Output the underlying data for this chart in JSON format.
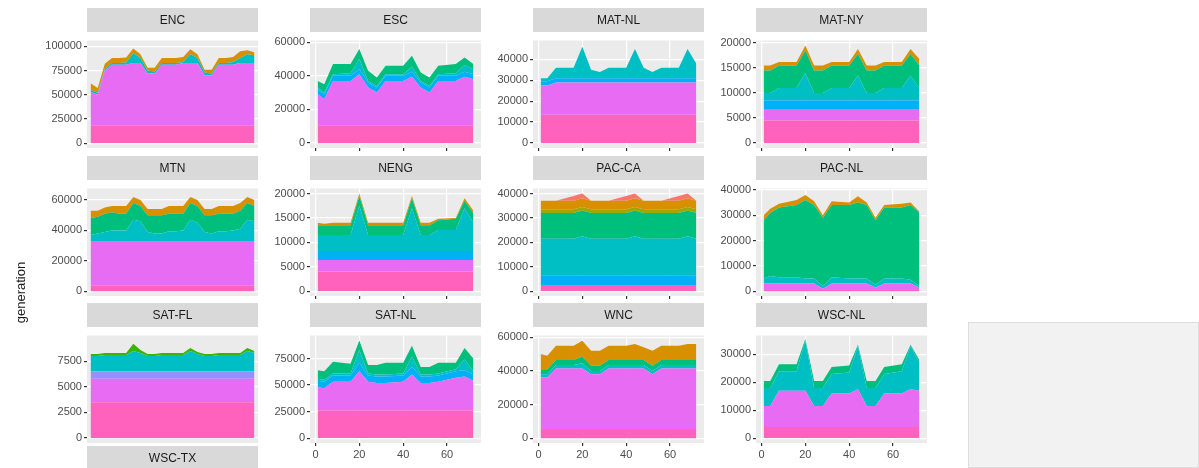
{
  "chart_data": [
    {
      "type": "area",
      "title": "ENC",
      "stacked": true,
      "grid": "y",
      "tick_labels": "y",
      "categories": [
        null,
        null,
        null,
        null,
        null,
        null,
        null,
        null,
        null,
        null,
        null,
        null,
        null,
        null,
        null,
        null,
        null,
        null,
        null,
        null,
        null,
        null,
        null,
        null
      ],
      "ylim": [
        -5050,
        106050
      ],
      "yticks": [
        0,
        25000,
        50000,
        75000,
        100000
      ],
      "series": [
        {
          "color": "#ff62bc",
          "values": [
            18000,
            18000,
            18000,
            18000,
            18000,
            18000,
            18000,
            18000,
            18000,
            18000,
            18000,
            18000,
            18000,
            18000,
            18000,
            18000,
            18000,
            18000,
            18000,
            18000,
            18000,
            18000,
            18000,
            18000
          ]
        },
        {
          "color": "#e76bf3",
          "values": [
            35000,
            32000,
            57000,
            63000,
            63000,
            63000,
            65000,
            65000,
            54000,
            54000,
            63000,
            63000,
            63000,
            65000,
            65000,
            65000,
            52000,
            52000,
            63000,
            63000,
            63000,
            65000,
            65000,
            65000
          ]
        },
        {
          "color": "#00bfc4",
          "values": [
            2000,
            2000,
            2000,
            2000,
            2000,
            2500,
            10000,
            5000,
            3000,
            2000,
            2000,
            2000,
            2000,
            1000,
            9000,
            5000,
            3000,
            2000,
            2000,
            2000,
            3000,
            5000,
            9000,
            8000
          ]
        },
        {
          "color": "#d89000",
          "values": [
            7000,
            5000,
            5000,
            5000,
            5000,
            5000,
            5000,
            4000,
            3000,
            4000,
            5000,
            5000,
            5000,
            5000,
            5000,
            4000,
            3000,
            4000,
            5000,
            5000,
            5000,
            7000,
            4000,
            3000
          ]
        }
      ]
    },
    {
      "type": "area",
      "title": "ESC",
      "stacked": true,
      "grid": true,
      "tick_labels": "y",
      "x": [
        1,
        4,
        8,
        16,
        20,
        24,
        28,
        32,
        40,
        44,
        48,
        52,
        56,
        64,
        68,
        72
      ],
      "xlim": [
        -2.5,
        75.5
      ],
      "xticks": [
        0,
        20,
        40,
        60
      ],
      "ylim": [
        -3000,
        61000
      ],
      "yticks": [
        0,
        20000,
        40000,
        60000
      ],
      "series": [
        {
          "color": "#ff62bc",
          "values": [
            10500,
            10500,
            10500,
            10500,
            10500,
            10500,
            10500,
            10500,
            10500,
            10500,
            10500,
            10500,
            10500,
            10500,
            10500,
            10500
          ]
        },
        {
          "color": "#e76bf3",
          "values": [
            18500,
            15500,
            26500,
            26500,
            30500,
            22500,
            19500,
            26500,
            26500,
            29000,
            22500,
            19500,
            26500,
            26500,
            29000,
            27500
          ]
        },
        {
          "color": "#00b0f6",
          "values": [
            3000,
            3000,
            3000,
            3000,
            3000,
            3000,
            3000,
            3000,
            3000,
            3000,
            3000,
            3000,
            3000,
            3000,
            3000,
            3000
          ]
        },
        {
          "color": "#00bfc4",
          "values": [
            1000,
            1000,
            1000,
            1500,
            6000,
            1000,
            1000,
            1000,
            1000,
            3000,
            1000,
            1000,
            1000,
            1500,
            4000,
            3000
          ]
        },
        {
          "color": "#00bf7d",
          "values": [
            4000,
            5000,
            6000,
            5500,
            6000,
            6000,
            5000,
            5000,
            5000,
            6500,
            5000,
            5000,
            5000,
            5500,
            4500,
            3000
          ]
        }
      ]
    },
    {
      "type": "area",
      "title": "MAT-NL",
      "stacked": true,
      "grid": true,
      "tick_labels": "y",
      "x": [
        1,
        4,
        8,
        16,
        20,
        24,
        28,
        32,
        40,
        44,
        48,
        52,
        56,
        64,
        68,
        72
      ],
      "xlim": [
        -2.5,
        75.5
      ],
      "xticks": [
        0,
        20,
        40,
        60
      ],
      "ylim": [
        -2400,
        49000
      ],
      "yticks": [
        0,
        10000,
        20000,
        30000,
        40000
      ],
      "series": [
        {
          "color": "#ff62bc",
          "values": [
            13500,
            13500,
            13500,
            13500,
            13500,
            13500,
            13500,
            13500,
            13500,
            13500,
            13500,
            13500,
            13500,
            13500,
            13500,
            13500
          ]
        },
        {
          "color": "#e76bf3",
          "values": [
            14000,
            14000,
            15500,
            15500,
            15500,
            15500,
            15500,
            15500,
            15500,
            15500,
            15500,
            15500,
            15500,
            15500,
            15500,
            15500
          ]
        },
        {
          "color": "#00b0f6",
          "values": [
            2000,
            2000,
            2000,
            2000,
            2000,
            2000,
            2000,
            2000,
            2000,
            2000,
            2000,
            2000,
            2000,
            2000,
            2000,
            2000
          ]
        },
        {
          "color": "#00bfc4",
          "values": [
            1500,
            1500,
            5000,
            5000,
            15000,
            4000,
            3000,
            5000,
            5000,
            14000,
            5000,
            3000,
            5000,
            5000,
            14000,
            7000
          ]
        }
      ]
    },
    {
      "type": "area",
      "title": "MAT-NY",
      "stacked": true,
      "grid": true,
      "tick_labels": "y",
      "x": [
        1,
        4,
        8,
        16,
        20,
        24,
        28,
        32,
        40,
        44,
        48,
        52,
        56,
        64,
        68,
        72
      ],
      "xlim": [
        -2.5,
        75.5
      ],
      "xticks": [
        0,
        20,
        40,
        60
      ],
      "ylim": [
        -1000,
        20500
      ],
      "yticks": [
        0,
        5000,
        10000,
        15000,
        20000
      ],
      "series": [
        {
          "color": "#ff62bc",
          "values": [
            4500,
            4500,
            4500,
            4500,
            4500,
            4500,
            4500,
            4500,
            4500,
            4500,
            4500,
            4500,
            4500,
            4500,
            4500,
            4500
          ]
        },
        {
          "color": "#e76bf3",
          "values": [
            2300,
            2300,
            2300,
            2300,
            2300,
            2300,
            2300,
            2300,
            2300,
            2300,
            2300,
            2300,
            2300,
            2300,
            2300,
            2300
          ]
        },
        {
          "color": "#00b0f6",
          "values": [
            1700,
            1700,
            1700,
            1700,
            1700,
            1700,
            1700,
            1700,
            1700,
            1700,
            1700,
            1700,
            1700,
            1700,
            1700,
            1700
          ]
        },
        {
          "color": "#00bfc4",
          "values": [
            1500,
            1500,
            2500,
            2500,
            5500,
            1500,
            1500,
            2500,
            2500,
            5000,
            1500,
            1500,
            2500,
            2500,
            5000,
            2500
          ]
        },
        {
          "color": "#00bf7d",
          "values": [
            4500,
            4500,
            4500,
            4500,
            4500,
            4500,
            4500,
            4500,
            4500,
            4300,
            4500,
            4500,
            4500,
            4500,
            4300,
            4500
          ]
        },
        {
          "color": "#d89000",
          "values": [
            1000,
            1000,
            700,
            700,
            1000,
            1000,
            1000,
            700,
            700,
            1000,
            1000,
            1000,
            700,
            700,
            1000,
            1300
          ]
        }
      ]
    },
    {
      "type": "area",
      "title": "MTN",
      "ylabel": "generation",
      "stacked": true,
      "grid": "y",
      "tick_labels": "y",
      "categories": [
        null,
        null,
        null,
        null,
        null,
        null,
        null,
        null,
        null,
        null,
        null,
        null,
        null,
        null,
        null,
        null,
        null,
        null,
        null,
        null,
        null,
        null,
        null,
        null
      ],
      "ylim": [
        -3200,
        67500
      ],
      "yticks": [
        0,
        20000,
        40000,
        60000
      ],
      "series": [
        {
          "color": "#ff62bc",
          "values": [
            3500,
            3500,
            3500,
            3500,
            3500,
            3500,
            3500,
            3500,
            3500,
            3500,
            3500,
            3500,
            3500,
            3500,
            3500,
            3500,
            3500,
            3500,
            3500,
            3500,
            3500,
            3500,
            3500,
            3500
          ]
        },
        {
          "color": "#e76bf3",
          "values": [
            29500,
            29500,
            29500,
            29500,
            29500,
            29500,
            29500,
            29500,
            29500,
            29500,
            29500,
            29500,
            29500,
            29500,
            29500,
            29500,
            29500,
            29500,
            29500,
            29500,
            29500,
            29500,
            29500,
            29500
          ]
        },
        {
          "color": "#00bfc4",
          "values": [
            4000,
            5000,
            6000,
            7000,
            7000,
            7000,
            14000,
            13000,
            6000,
            5000,
            5000,
            6500,
            6500,
            7000,
            14000,
            12000,
            6000,
            5000,
            6500,
            6500,
            7000,
            8000,
            14000,
            13000
          ]
        },
        {
          "color": "#00bf7d",
          "values": [
            11000,
            11000,
            12000,
            12000,
            11000,
            11000,
            11000,
            10000,
            11000,
            12000,
            12000,
            11500,
            11500,
            11000,
            11000,
            11000,
            11000,
            12000,
            11500,
            11500,
            11000,
            12000,
            11000,
            10000
          ]
        },
        {
          "color": "#d89000",
          "values": [
            5000,
            4000,
            4000,
            4000,
            5000,
            5000,
            4000,
            4000,
            4000,
            4000,
            4000,
            5000,
            5000,
            5000,
            4000,
            4000,
            4000,
            4000,
            5000,
            5000,
            5000,
            5000,
            4000,
            4000
          ]
        }
      ]
    },
    {
      "type": "area",
      "title": "NENG",
      "stacked": true,
      "grid": true,
      "tick_labels": "y",
      "x": [
        1,
        4,
        8,
        16,
        20,
        24,
        28,
        32,
        40,
        44,
        48,
        52,
        56,
        64,
        68,
        72
      ],
      "xlim": [
        -2.5,
        75.5
      ],
      "xticks": [
        0,
        20,
        40,
        60
      ],
      "ylim": [
        -1000,
        21000
      ],
      "yticks": [
        0,
        5000,
        10000,
        15000,
        20000
      ],
      "series": [
        {
          "color": "#ff62bc",
          "values": [
            4000,
            4000,
            4000,
            4000,
            4000,
            4000,
            4000,
            4000,
            4000,
            4000,
            4000,
            4000,
            4000,
            4000,
            4000,
            4000
          ]
        },
        {
          "color": "#e76bf3",
          "values": [
            2400,
            2400,
            2400,
            2400,
            2400,
            2400,
            2400,
            2400,
            2400,
            2400,
            2400,
            2400,
            2400,
            2400,
            2400,
            2400
          ]
        },
        {
          "color": "#00b0f6",
          "values": [
            1800,
            1800,
            1800,
            1800,
            1800,
            1800,
            1800,
            1800,
            1800,
            1800,
            1800,
            1800,
            1800,
            1800,
            1800,
            1800
          ]
        },
        {
          "color": "#00bfc4",
          "values": [
            3300,
            3300,
            3300,
            3300,
            9300,
            3300,
            3300,
            3300,
            3300,
            8800,
            3300,
            3300,
            4300,
            4300,
            8800,
            5800
          ]
        },
        {
          "color": "#00bf7d",
          "values": [
            2000,
            2000,
            2000,
            2000,
            2000,
            2000,
            2000,
            2000,
            2000,
            2000,
            2000,
            2000,
            2000,
            2300,
            1500,
            2000
          ]
        },
        {
          "color": "#d89000",
          "values": [
            500,
            300,
            500,
            500,
            500,
            500,
            500,
            500,
            500,
            500,
            500,
            500,
            300,
            200,
            500,
            500
          ]
        }
      ]
    },
    {
      "type": "area",
      "title": "PAC-CA",
      "stacked": true,
      "grid": true,
      "tick_labels": "y",
      "x": [
        1,
        4,
        8,
        16,
        20,
        24,
        28,
        32,
        40,
        44,
        48,
        52,
        56,
        64,
        68,
        72
      ],
      "xlim": [
        -2.5,
        75.5
      ],
      "xticks": [
        0,
        20,
        40,
        60
      ],
      "ylim": [
        -2000,
        42000
      ],
      "yticks": [
        0,
        10000,
        20000,
        30000,
        40000
      ],
      "series": [
        {
          "color": "#ff62bc",
          "values": [
            2500,
            2500,
            2500,
            2500,
            2500,
            2500,
            2500,
            2500,
            2500,
            2500,
            2500,
            2500,
            2500,
            2500,
            2500,
            2500
          ]
        },
        {
          "color": "#00b0f6",
          "values": [
            4000,
            4000,
            4000,
            4000,
            4000,
            4000,
            4000,
            4000,
            4000,
            4000,
            4000,
            4000,
            4000,
            4000,
            4000,
            4000
          ]
        },
        {
          "color": "#00bfc4",
          "values": [
            15000,
            15000,
            15000,
            15000,
            16000,
            15000,
            15000,
            15000,
            15000,
            16000,
            15000,
            15000,
            15000,
            15000,
            16000,
            15000
          ]
        },
        {
          "color": "#00bf7d",
          "values": [
            10500,
            10500,
            10500,
            10500,
            10500,
            10500,
            10500,
            10500,
            10500,
            10500,
            10500,
            10500,
            10500,
            10500,
            10500,
            10500
          ]
        },
        {
          "color": "#a3a500",
          "values": [
            1500,
            1500,
            1500,
            1500,
            1500,
            1500,
            1500,
            1500,
            1500,
            1500,
            1500,
            1500,
            1500,
            1500,
            1500,
            1500
          ]
        },
        {
          "color": "#d89000",
          "values": [
            3500,
            3500,
            3500,
            3500,
            3500,
            3500,
            3500,
            3500,
            3500,
            3500,
            3500,
            3500,
            3500,
            3500,
            3500,
            3500
          ]
        },
        {
          "color": "#f8766d",
          "values": [
            0,
            0,
            0,
            2000,
            2000,
            0,
            0,
            0,
            2000,
            2000,
            0,
            0,
            0,
            2000,
            2000,
            0
          ]
        }
      ]
    },
    {
      "type": "area",
      "title": "PAC-NL",
      "stacked": true,
      "grid": true,
      "tick_labels": "y",
      "x": [
        1,
        4,
        8,
        16,
        20,
        24,
        28,
        32,
        40,
        44,
        48,
        52,
        56,
        64,
        68,
        72
      ],
      "xlim": [
        -2.5,
        75.5
      ],
      "xticks": [
        0,
        20,
        40,
        60
      ],
      "ylim": [
        -1900,
        40500
      ],
      "yticks": [
        0,
        10000,
        20000,
        30000,
        40000
      ],
      "series": [
        {
          "color": "#ff62bc",
          "values": [
            500,
            500,
            500,
            500,
            500,
            500,
            500,
            500,
            500,
            500,
            500,
            500,
            500,
            500,
            500,
            500
          ]
        },
        {
          "color": "#e76bf3",
          "values": [
            2500,
            2500,
            2500,
            2500,
            2500,
            2500,
            500,
            2500,
            2500,
            2500,
            2500,
            1000,
            2500,
            2500,
            2500,
            1000
          ]
        },
        {
          "color": "#00bfc4",
          "values": [
            2000,
            3000,
            2500,
            2500,
            2000,
            2000,
            1000,
            2500,
            2000,
            2000,
            2000,
            1000,
            2000,
            2000,
            1500,
            500
          ]
        },
        {
          "color": "#00bf7d",
          "values": [
            23000,
            25000,
            27500,
            28500,
            31000,
            29000,
            27000,
            28500,
            29000,
            30000,
            29000,
            25500,
            28000,
            28000,
            29500,
            29000
          ]
        },
        {
          "color": "#d89000",
          "values": [
            2000,
            1500,
            1500,
            2000,
            2000,
            1500,
            1000,
            1500,
            1000,
            2500,
            1000,
            1000,
            1000,
            1500,
            1000,
            500
          ]
        }
      ]
    },
    {
      "type": "area",
      "title": "SAT-FL",
      "stacked": true,
      "grid": "y",
      "tick_labels": "y",
      "categories": [
        null,
        null,
        null,
        null,
        null,
        null,
        null,
        null,
        null,
        null,
        null,
        null,
        null,
        null,
        null,
        null,
        null,
        null,
        null,
        null,
        null,
        null,
        null,
        null
      ],
      "ylim": [
        -480,
        10000
      ],
      "yticks": [
        0,
        2500,
        5000,
        7500
      ],
      "series": [
        {
          "color": "#ff62bc",
          "values": [
            3500,
            3500,
            3500,
            3500,
            3500,
            3500,
            3500,
            3500,
            3500,
            3500,
            3500,
            3500,
            3500,
            3500,
            3500,
            3500,
            3500,
            3500,
            3500,
            3500,
            3500,
            3500,
            3500,
            3500
          ]
        },
        {
          "color": "#e76bf3",
          "values": [
            2300,
            2300,
            2300,
            2300,
            2300,
            2300,
            2300,
            2300,
            2300,
            2300,
            2300,
            2300,
            2300,
            2300,
            2300,
            2300,
            2300,
            2300,
            2300,
            2300,
            2300,
            2300,
            2300,
            2300
          ]
        },
        {
          "color": "#9590ff",
          "values": [
            700,
            700,
            700,
            700,
            700,
            700,
            700,
            700,
            700,
            700,
            700,
            700,
            700,
            700,
            700,
            700,
            700,
            700,
            700,
            700,
            700,
            700,
            700,
            700
          ]
        },
        {
          "color": "#00bfc4",
          "values": [
            1500,
            1500,
            1600,
            1600,
            1600,
            1600,
            2000,
            1800,
            1500,
            1500,
            1600,
            1600,
            1600,
            1600,
            2000,
            1700,
            1500,
            1500,
            1600,
            1600,
            1600,
            1600,
            2000,
            1800
          ]
        },
        {
          "color": "#39b600",
          "values": [
            200,
            200,
            200,
            200,
            200,
            200,
            700,
            300,
            200,
            200,
            200,
            200,
            200,
            200,
            300,
            200,
            200,
            200,
            200,
            200,
            200,
            200,
            300,
            200
          ]
        }
      ]
    },
    {
      "type": "area",
      "title": "SAT-NL",
      "stacked": true,
      "grid": true,
      "x": [
        1,
        4,
        8,
        16,
        20,
        24,
        28,
        32,
        40,
        44,
        48,
        52,
        56,
        64,
        68,
        72
      ],
      "xlim": [
        -2.5,
        75.5
      ],
      "xticks": [
        0,
        20,
        40,
        60
      ],
      "ylim": [
        -4600,
        96600
      ],
      "yticks": [
        0,
        25000,
        50000,
        75000
      ],
      "series": [
        {
          "color": "#ff62bc",
          "values": [
            26000,
            26000,
            26000,
            26000,
            26000,
            26000,
            26000,
            26000,
            26000,
            26000,
            26000,
            26000,
            26000,
            26000,
            26000,
            26000
          ]
        },
        {
          "color": "#e76bf3",
          "values": [
            22000,
            21000,
            27000,
            27000,
            37000,
            27000,
            26000,
            26000,
            27000,
            34000,
            26000,
            26000,
            27000,
            31000,
            32000,
            28000
          ]
        },
        {
          "color": "#00b0f6",
          "values": [
            6000,
            6000,
            6000,
            6000,
            8000,
            6000,
            6000,
            6000,
            6000,
            7000,
            6000,
            6000,
            6000,
            6000,
            6000,
            6000
          ]
        },
        {
          "color": "#00bfc4",
          "values": [
            2000,
            2000,
            2000,
            2000,
            12000,
            2000,
            2000,
            2000,
            2000,
            10000,
            2000,
            2000,
            2000,
            2000,
            10000,
            3000
          ]
        },
        {
          "color": "#00bf7d",
          "values": [
            8000,
            8000,
            11000,
            9000,
            9000,
            8000,
            9000,
            11000,
            10000,
            10000,
            7000,
            7000,
            10000,
            6000,
            11000,
            12000
          ]
        }
      ]
    },
    {
      "type": "area",
      "title": "WNC",
      "stacked": true,
      "grid": true,
      "x": [
        1,
        4,
        8,
        16,
        20,
        24,
        28,
        32,
        40,
        44,
        48,
        52,
        56,
        64,
        68,
        72
      ],
      "xlim": [
        -2.5,
        75.5
      ],
      "xticks": [
        0,
        20,
        40,
        60
      ],
      "ylim": [
        -2900,
        61000
      ],
      "yticks": [
        0,
        20000,
        40000,
        60000
      ],
      "series": [
        {
          "color": "#ff62bc",
          "values": [
            5500,
            5500,
            5500,
            5500,
            5500,
            5500,
            5500,
            5500,
            5500,
            5500,
            5500,
            5500,
            5500,
            5500,
            5500,
            5500
          ]
        },
        {
          "color": "#e76bf3",
          "values": [
            30500,
            30500,
            36000,
            36000,
            36000,
            32500,
            32500,
            36000,
            36000,
            36000,
            36000,
            32500,
            36000,
            36000,
            36000,
            36000
          ]
        },
        {
          "color": "#00bfc4",
          "values": [
            2000,
            2000,
            2000,
            2000,
            3000,
            2000,
            2000,
            2000,
            2000,
            2000,
            2000,
            2000,
            2000,
            2000,
            2000,
            2000
          ]
        },
        {
          "color": "#00bf7d",
          "values": [
            3000,
            3000,
            3000,
            3000,
            4000,
            3000,
            3000,
            3000,
            3000,
            3000,
            3000,
            3000,
            3000,
            3000,
            3000,
            3000
          ]
        },
        {
          "color": "#d89000",
          "values": [
            9000,
            8000,
            8500,
            8500,
            9500,
            9000,
            9000,
            8500,
            8500,
            9500,
            7500,
            9000,
            8500,
            8500,
            9500,
            9500
          ]
        }
      ]
    },
    {
      "type": "area",
      "title": "WSC-NL",
      "stacked": true,
      "grid": true,
      "x": [
        1,
        4,
        8,
        16,
        20,
        24,
        28,
        32,
        40,
        44,
        48,
        52,
        56,
        64,
        68,
        72
      ],
      "xlim": [
        -2.5,
        75.5
      ],
      "xticks": [
        0,
        20,
        40,
        60
      ],
      "ylim": [
        -1750,
        36750
      ],
      "yticks": [
        0,
        10000,
        20000,
        30000
      ],
      "series": [
        {
          "color": "#ff62bc",
          "values": [
            4000,
            4000,
            4000,
            4000,
            4000,
            4000,
            4000,
            4000,
            4000,
            4000,
            4000,
            4000,
            4000,
            4000,
            4000,
            4000
          ]
        },
        {
          "color": "#e76bf3",
          "values": [
            7500,
            7500,
            13000,
            13000,
            13000,
            7500,
            7500,
            12000,
            12000,
            13500,
            7500,
            7500,
            12000,
            12000,
            13500,
            13000
          ]
        },
        {
          "color": "#00bfc4",
          "values": [
            6500,
            6500,
            7000,
            7000,
            18000,
            6500,
            6500,
            7000,
            7500,
            15500,
            6500,
            6500,
            7000,
            8000,
            15500,
            10000
          ]
        },
        {
          "color": "#00bf7d",
          "values": [
            2500,
            2500,
            2500,
            2500,
            500,
            2500,
            2500,
            2500,
            2500,
            500,
            2500,
            2500,
            2500,
            2500,
            500,
            1000
          ]
        }
      ]
    },
    {
      "type": "other",
      "title": "WSC-TX"
    }
  ]
}
